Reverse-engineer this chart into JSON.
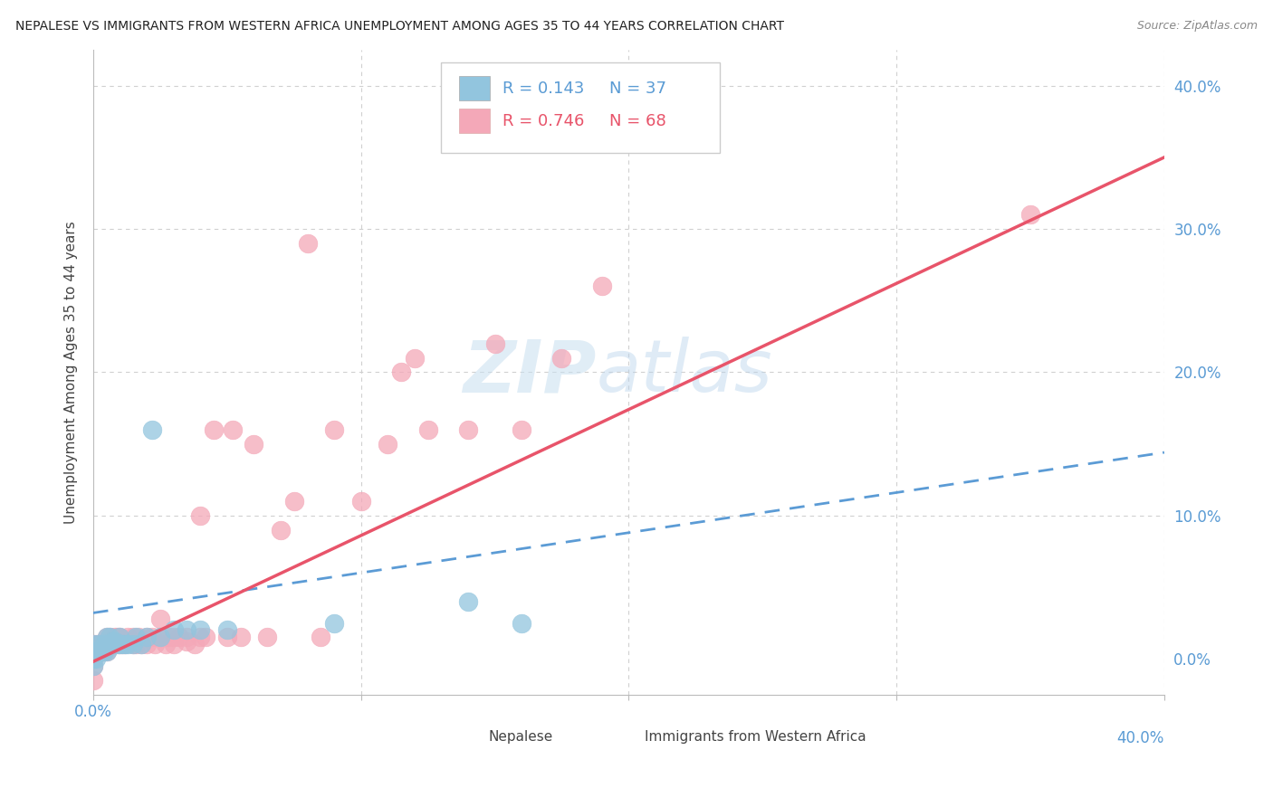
{
  "title": "NEPALESE VS IMMIGRANTS FROM WESTERN AFRICA UNEMPLOYMENT AMONG AGES 35 TO 44 YEARS CORRELATION CHART",
  "source": "Source: ZipAtlas.com",
  "ylabel": "Unemployment Among Ages 35 to 44 years",
  "xlim": [
    0.0,
    0.4
  ],
  "ylim": [
    -0.025,
    0.425
  ],
  "xticks": [
    0.0,
    0.1,
    0.2,
    0.3,
    0.4
  ],
  "yticks": [
    0.0,
    0.1,
    0.2,
    0.3,
    0.4
  ],
  "right_yticklabels": [
    "0.0%",
    "10.0%",
    "20.0%",
    "30.0%",
    "40.0%"
  ],
  "legend_r1": "R = 0.143",
  "legend_n1": "N = 37",
  "legend_r2": "R = 0.746",
  "legend_n2": "N = 68",
  "blue_color": "#92c5de",
  "pink_color": "#f4a8b8",
  "trend_blue_color": "#5b9bd5",
  "trend_pink_color": "#e8546a",
  "watermark_zip": "ZIP",
  "watermark_atlas": "atlas",
  "background_color": "#ffffff",
  "grid_color": "#d0d0d0",
  "tick_color": "#5a9bd4",
  "title_color": "#222222",
  "source_color": "#888888",
  "legend_text_color": "#5a9bd4",
  "legend_n_color": "#e8546a",
  "blue_trend_slope": 0.28,
  "blue_trend_intercept": 0.032,
  "pink_trend_slope": 0.88,
  "pink_trend_intercept": -0.002,
  "nepalese_x": [
    0.0,
    0.0,
    0.0,
    0.0,
    0.001,
    0.001,
    0.002,
    0.002,
    0.003,
    0.004,
    0.004,
    0.005,
    0.005,
    0.006,
    0.006,
    0.007,
    0.007,
    0.008,
    0.009,
    0.01,
    0.01,
    0.011,
    0.012,
    0.013,
    0.015,
    0.016,
    0.018,
    0.02,
    0.022,
    0.025,
    0.03,
    0.035,
    0.04,
    0.05,
    0.09,
    0.14,
    0.16
  ],
  "nepalese_y": [
    0.0,
    0.005,
    0.01,
    -0.005,
    0.0,
    0.005,
    0.005,
    0.01,
    0.005,
    0.005,
    0.01,
    0.005,
    0.015,
    0.01,
    0.015,
    0.01,
    0.012,
    0.012,
    0.01,
    0.01,
    0.015,
    0.01,
    0.01,
    0.01,
    0.01,
    0.015,
    0.01,
    0.015,
    0.16,
    0.015,
    0.02,
    0.02,
    0.02,
    0.02,
    0.025,
    0.04,
    0.025
  ],
  "wa_x": [
    0.0,
    0.0,
    0.0,
    0.0,
    0.0,
    0.001,
    0.001,
    0.002,
    0.003,
    0.004,
    0.005,
    0.005,
    0.006,
    0.006,
    0.007,
    0.008,
    0.008,
    0.009,
    0.01,
    0.01,
    0.011,
    0.012,
    0.013,
    0.014,
    0.015,
    0.015,
    0.016,
    0.017,
    0.018,
    0.02,
    0.02,
    0.022,
    0.023,
    0.025,
    0.025,
    0.027,
    0.028,
    0.03,
    0.03,
    0.032,
    0.035,
    0.035,
    0.038,
    0.04,
    0.04,
    0.042,
    0.045,
    0.05,
    0.052,
    0.055,
    0.06,
    0.065,
    0.07,
    0.075,
    0.08,
    0.085,
    0.09,
    0.1,
    0.11,
    0.115,
    0.12,
    0.125,
    0.14,
    0.15,
    0.16,
    0.175,
    0.19,
    0.35
  ],
  "wa_y": [
    0.0,
    0.005,
    0.01,
    -0.005,
    -0.015,
    0.005,
    0.01,
    0.01,
    0.01,
    0.005,
    0.005,
    0.015,
    0.01,
    0.015,
    0.01,
    0.01,
    0.015,
    0.015,
    0.01,
    0.015,
    0.01,
    0.01,
    0.015,
    0.012,
    0.01,
    0.015,
    0.01,
    0.015,
    0.01,
    0.01,
    0.015,
    0.015,
    0.01,
    0.015,
    0.028,
    0.01,
    0.015,
    0.01,
    0.015,
    0.015,
    0.015,
    0.012,
    0.01,
    0.015,
    0.1,
    0.015,
    0.16,
    0.015,
    0.16,
    0.015,
    0.15,
    0.015,
    0.09,
    0.11,
    0.29,
    0.015,
    0.16,
    0.11,
    0.15,
    0.2,
    0.21,
    0.16,
    0.16,
    0.22,
    0.16,
    0.21,
    0.26,
    0.31
  ]
}
